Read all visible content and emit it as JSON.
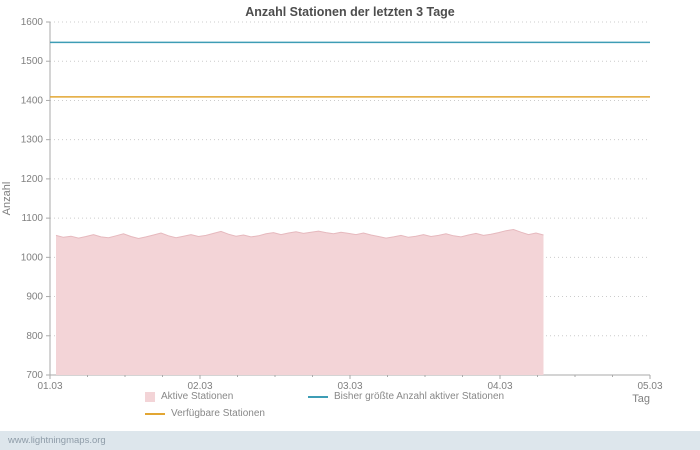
{
  "chart_data": {
    "type": "area",
    "title": "Anzahl Stationen der letzten 3 Tage",
    "xlabel": "Tag",
    "ylabel": "Anzahl",
    "ylim": [
      700,
      1600
    ],
    "xlim": [
      0,
      4
    ],
    "y_ticks": [
      700,
      800,
      900,
      1000,
      1100,
      1200,
      1300,
      1400,
      1500,
      1600
    ],
    "y_tick_labels": [
      "700",
      "800",
      "900",
      "1000",
      "1100",
      "1200",
      "1300",
      "1400",
      "1500",
      "1600"
    ],
    "x_ticks": [
      0,
      1,
      2,
      3,
      4
    ],
    "x_tick_labels": [
      "01.03",
      "02.03",
      "03.03",
      "04.03",
      "05.03"
    ],
    "x_minor_tick_step": 0.25,
    "grid": "horizontal-dotted",
    "legend_position": "bottom",
    "colors": {
      "grid": "#cccccc",
      "axis": "#aaaaaa",
      "text": "#808080"
    },
    "series": [
      {
        "key": "aktive-stationen",
        "name": "Aktive Stationen",
        "type": "area",
        "fill": "#f3d4d7",
        "stroke": "#e6b9be",
        "x_start": 0.04,
        "x_step": 0.05,
        "values": [
          1056,
          1051,
          1054,
          1049,
          1053,
          1058,
          1052,
          1050,
          1055,
          1060,
          1053,
          1048,
          1052,
          1057,
          1062,
          1055,
          1050,
          1054,
          1058,
          1053,
          1056,
          1061,
          1066,
          1059,
          1054,
          1057,
          1052,
          1055,
          1060,
          1063,
          1058,
          1062,
          1065,
          1061,
          1064,
          1067,
          1063,
          1060,
          1064,
          1061,
          1058,
          1062,
          1057,
          1053,
          1049,
          1052,
          1056,
          1051,
          1054,
          1058,
          1053,
          1056,
          1060,
          1055,
          1052,
          1057,
          1061,
          1056,
          1059,
          1063,
          1068,
          1071,
          1064,
          1058,
          1062,
          1057
        ]
      },
      {
        "key": "max-aktive-stationen",
        "name": "Bisher größte Anzahl aktiver Stationen",
        "type": "line",
        "color": "#3d9db5",
        "value": 1548,
        "x_range": [
          0,
          4
        ]
      },
      {
        "key": "verfuegbare-stationen",
        "name": "Verfügbare Stationen",
        "type": "line",
        "color": "#e2a633",
        "value": 1409,
        "x_range": [
          0,
          4
        ]
      }
    ]
  },
  "footer": {
    "url": "www.lightningmaps.org"
  }
}
